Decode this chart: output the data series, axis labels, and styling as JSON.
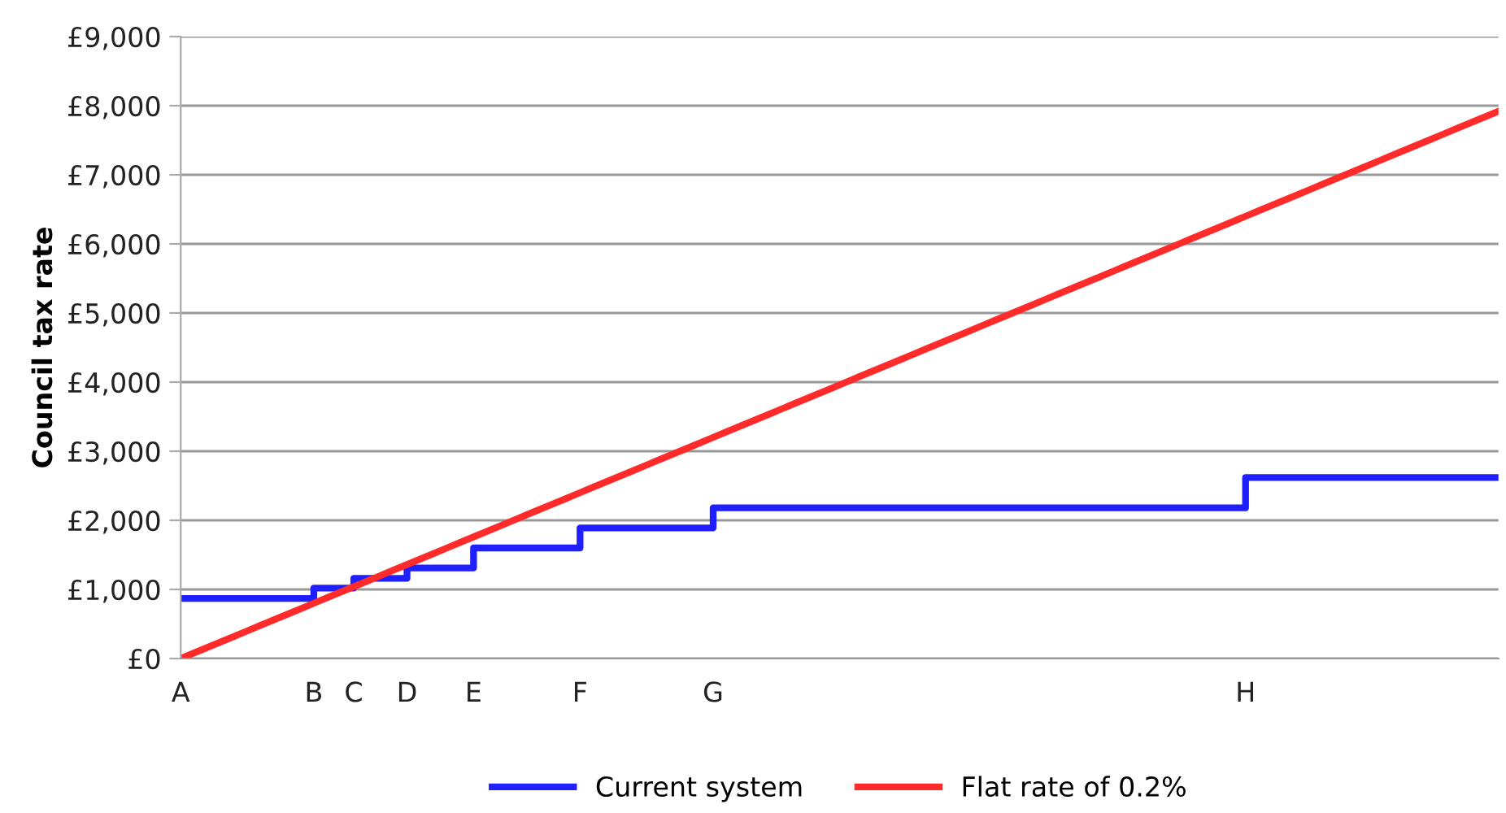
{
  "chart_data": {
    "type": "line",
    "ylabel": "Council tax rate",
    "categories": [
      "A",
      null,
      null,
      null,
      null,
      null,
      null,
      null,
      null,
      null,
      "B",
      null,
      null,
      "C",
      null,
      null,
      null,
      "D",
      null,
      null,
      null,
      null,
      "E",
      null,
      null,
      null,
      null,
      null,
      null,
      null,
      "F",
      null,
      null,
      null,
      null,
      null,
      null,
      null,
      null,
      null,
      "G",
      null,
      null,
      null,
      null,
      null,
      null,
      null,
      null,
      null,
      null,
      null,
      null,
      null,
      null,
      null,
      null,
      null,
      null,
      null,
      null,
      null,
      null,
      null,
      null,
      null,
      null,
      null,
      null,
      null,
      null,
      null,
      null,
      null,
      null,
      null,
      null,
      null,
      null,
      null,
      "H",
      null,
      null,
      null,
      null,
      null,
      null,
      null,
      null,
      null,
      null,
      null,
      null,
      null,
      null,
      null,
      null,
      null,
      null,
      null
    ],
    "ylim": [
      0,
      9000
    ],
    "yticks": [
      {
        "value": 0,
        "label": "£0"
      },
      {
        "value": 1000,
        "label": "£1,000"
      },
      {
        "value": 2000,
        "label": "£2,000"
      },
      {
        "value": 3000,
        "label": "£3,000"
      },
      {
        "value": 4000,
        "label": "£4,000"
      },
      {
        "value": 5000,
        "label": "£5,000"
      },
      {
        "value": 6000,
        "label": "£6,000"
      },
      {
        "value": 7000,
        "label": "£7,000"
      },
      {
        "value": 8000,
        "label": "£8,000"
      },
      {
        "value": 9000,
        "label": "£9,000"
      }
    ],
    "grid": "y",
    "legend": "bottom",
    "marker": "none",
    "line_style": "solid",
    "series": [
      {
        "name": "Current system",
        "type": "step",
        "color": "#1f1fff",
        "values": [
          870,
          870,
          870,
          870,
          870,
          870,
          870,
          870,
          870,
          870,
          1020,
          1020,
          1020,
          1160,
          1160,
          1160,
          1160,
          1310,
          1310,
          1310,
          1310,
          1310,
          1600,
          1600,
          1600,
          1600,
          1600,
          1600,
          1600,
          1600,
          1890,
          1890,
          1890,
          1890,
          1890,
          1890,
          1890,
          1890,
          1890,
          1890,
          2180,
          2180,
          2180,
          2180,
          2180,
          2180,
          2180,
          2180,
          2180,
          2180,
          2180,
          2180,
          2180,
          2180,
          2180,
          2180,
          2180,
          2180,
          2180,
          2180,
          2180,
          2180,
          2180,
          2180,
          2180,
          2180,
          2180,
          2180,
          2180,
          2180,
          2180,
          2180,
          2180,
          2180,
          2180,
          2180,
          2180,
          2180,
          2180,
          2180,
          2620,
          2620,
          2620,
          2620,
          2620,
          2620,
          2620,
          2620,
          2620,
          2620,
          2620,
          2620,
          2620,
          2620,
          2620,
          2620,
          2620,
          2620,
          2620,
          2620
        ]
      },
      {
        "name": "Flat rate of 0.2%",
        "type": "line",
        "color": "#ff2a2a",
        "values": [
          0,
          80,
          160,
          240,
          320,
          400,
          480,
          560,
          640,
          720,
          800,
          880,
          960,
          1040,
          1120,
          1200,
          1280,
          1360,
          1440,
          1520,
          1600,
          1680,
          1760,
          1840,
          1920,
          2000,
          2080,
          2160,
          2240,
          2320,
          2400,
          2480,
          2560,
          2640,
          2720,
          2800,
          2880,
          2960,
          3040,
          3120,
          3200,
          3280,
          3360,
          3440,
          3520,
          3600,
          3680,
          3760,
          3840,
          3920,
          4000,
          4080,
          4160,
          4240,
          4320,
          4400,
          4480,
          4560,
          4640,
          4720,
          4800,
          4880,
          4960,
          5040,
          5120,
          5200,
          5280,
          5360,
          5440,
          5520,
          5600,
          5680,
          5760,
          5840,
          5920,
          6000,
          6080,
          6160,
          6240,
          6320,
          6400,
          6480,
          6560,
          6640,
          6720,
          6800,
          6880,
          6960,
          7040,
          7120,
          7200,
          7280,
          7360,
          7440,
          7520,
          7600,
          7680,
          7760,
          7840,
          7920
        ]
      }
    ]
  }
}
